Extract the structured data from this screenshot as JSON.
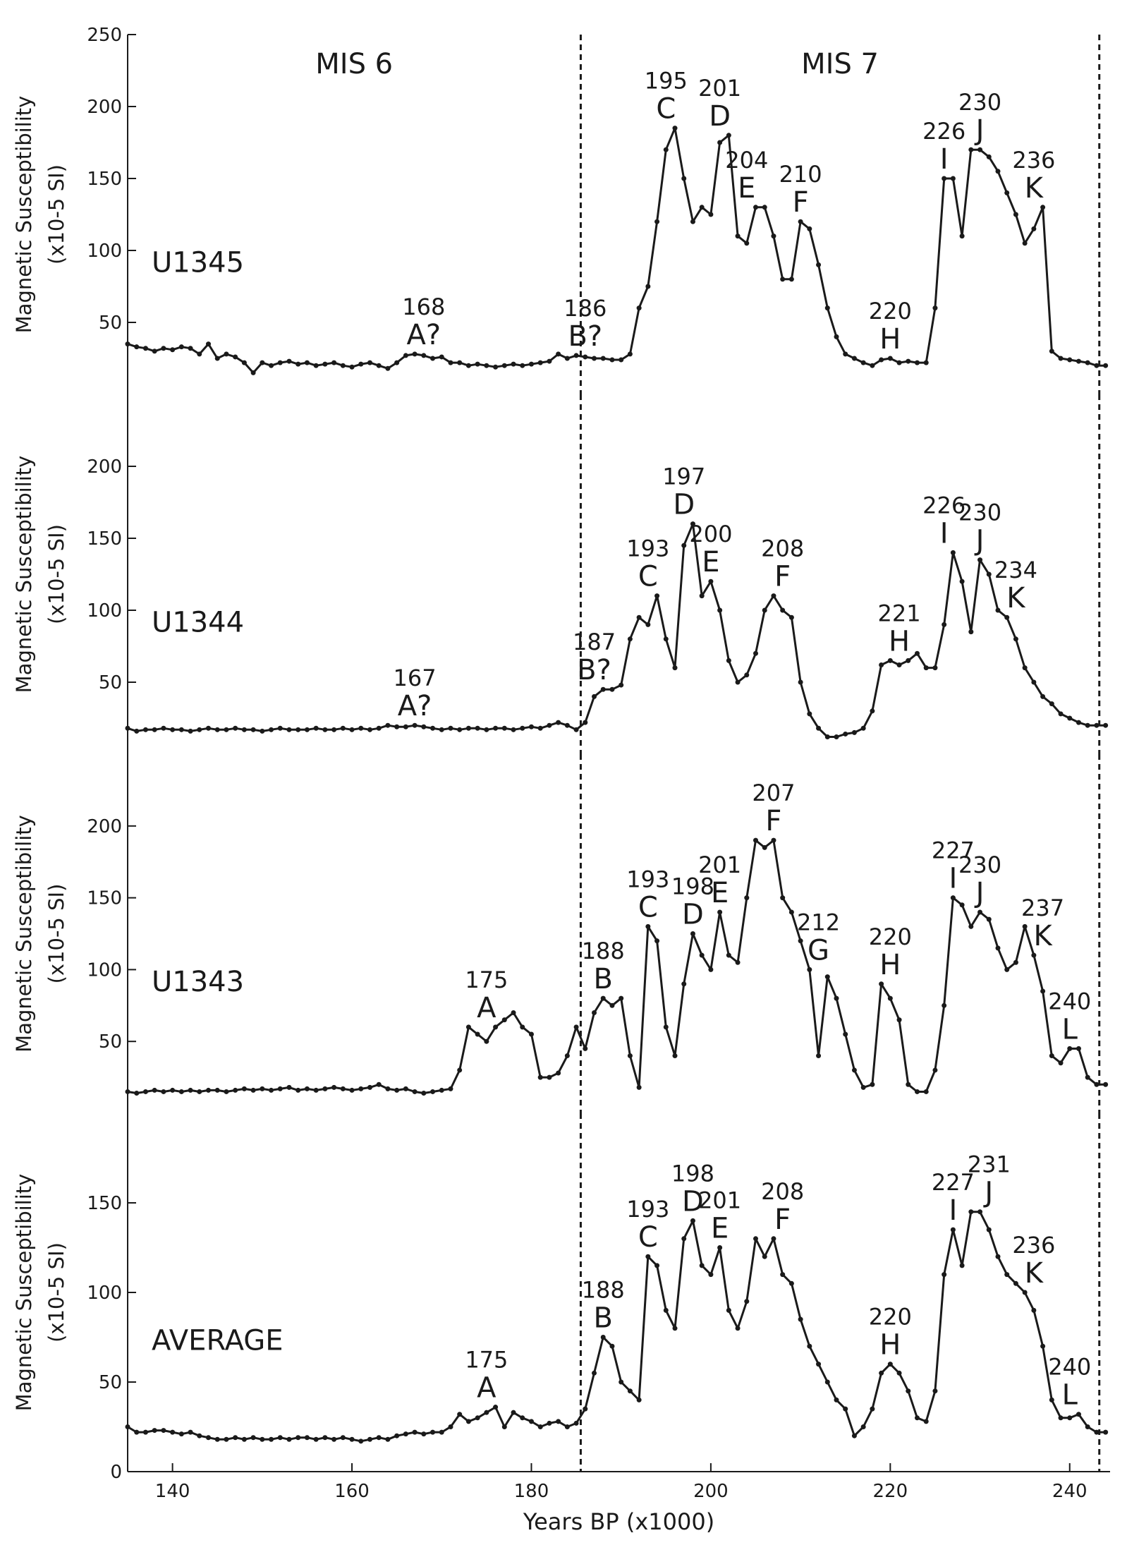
{
  "chart_data": [
    {
      "type": "line",
      "panel_label": "U1345",
      "y_label": [
        "Magnetic Susceptibility",
        "(x10-5 SI)"
      ],
      "periods": [
        "MIS 6",
        "MIS 7"
      ],
      "xlim": [
        135,
        244.5
      ],
      "ylim": [
        0,
        250
      ],
      "yticks": [
        50,
        100,
        150,
        200,
        250
      ],
      "vlines": [
        185.5,
        243.3
      ],
      "x": [
        135,
        136,
        137,
        138,
        139,
        140,
        141,
        142,
        143,
        144,
        145,
        146,
        147,
        148,
        149,
        150,
        151,
        152,
        153,
        154,
        155,
        156,
        157,
        158,
        159,
        160,
        161,
        162,
        163,
        164,
        165,
        166,
        167,
        168,
        169,
        170,
        171,
        172,
        173,
        174,
        175,
        176,
        177,
        178,
        179,
        180,
        181,
        182,
        183,
        184,
        185,
        186,
        187,
        188,
        189,
        190,
        191,
        192,
        193,
        194,
        195,
        196,
        197,
        198,
        199,
        200,
        201,
        202,
        203,
        204,
        205,
        206,
        207,
        208,
        209,
        210,
        211,
        212,
        213,
        214,
        215,
        216,
        217,
        218,
        219,
        220,
        221,
        222,
        223,
        224,
        225,
        226,
        227,
        228,
        229,
        230,
        231,
        232,
        233,
        234,
        235,
        236,
        237,
        238,
        239,
        240,
        241,
        242,
        243,
        244
      ],
      "series": [
        {
          "color": "#1a1a1a",
          "values": [
            35,
            33,
            32,
            30,
            32,
            31,
            33,
            32,
            28,
            35,
            25,
            28,
            26,
            22,
            15,
            22,
            20,
            22,
            23,
            21,
            22,
            20,
            21,
            22,
            20,
            19,
            21,
            22,
            20,
            18,
            22,
            27,
            28,
            27,
            25,
            26,
            22,
            22,
            20,
            21,
            20,
            19,
            20,
            21,
            20,
            21,
            22,
            23,
            28,
            25,
            27,
            26,
            25,
            25,
            24,
            24,
            28,
            60,
            75,
            120,
            170,
            185,
            150,
            120,
            130,
            125,
            175,
            180,
            110,
            105,
            130,
            130,
            110,
            80,
            80,
            120,
            115,
            90,
            60,
            40,
            28,
            25,
            22,
            20,
            24,
            25,
            22,
            23,
            22,
            22,
            60,
            150,
            150,
            110,
            170,
            170,
            165,
            155,
            140,
            125,
            105,
            115,
            130,
            30,
            25,
            24,
            23,
            22,
            20,
            20
          ]
        }
      ],
      "annotations": [
        {
          "year": 168,
          "letter": "A?"
        },
        {
          "year": 186,
          "letter": "B?"
        },
        {
          "year": 195,
          "letter": "C"
        },
        {
          "year": 201,
          "letter": "D"
        },
        {
          "year": 204,
          "letter": "E"
        },
        {
          "year": 210,
          "letter": "F"
        },
        {
          "year": 220,
          "letter": "H"
        },
        {
          "year": 226,
          "letter": "I"
        },
        {
          "year": 230,
          "letter": "J"
        },
        {
          "year": 236,
          "letter": "K"
        }
      ]
    },
    {
      "type": "line",
      "panel_label": "U1344",
      "y_label": [
        "Magnetic Susceptibility",
        "(x10-5 SI)"
      ],
      "xlim": [
        135,
        244.5
      ],
      "ylim": [
        0,
        250
      ],
      "yticks": [
        50,
        100,
        150,
        200
      ],
      "vlines": [
        185.5,
        243.3
      ],
      "x": [
        135,
        136,
        137,
        138,
        139,
        140,
        141,
        142,
        143,
        144,
        145,
        146,
        147,
        148,
        149,
        150,
        151,
        152,
        153,
        154,
        155,
        156,
        157,
        158,
        159,
        160,
        161,
        162,
        163,
        164,
        165,
        166,
        167,
        168,
        169,
        170,
        171,
        172,
        173,
        174,
        175,
        176,
        177,
        178,
        179,
        180,
        181,
        182,
        183,
        184,
        185,
        186,
        187,
        188,
        189,
        190,
        191,
        192,
        193,
        194,
        195,
        196,
        197,
        198,
        199,
        200,
        201,
        202,
        203,
        204,
        205,
        206,
        207,
        208,
        209,
        210,
        211,
        212,
        213,
        214,
        215,
        216,
        217,
        218,
        219,
        220,
        221,
        222,
        223,
        224,
        225,
        226,
        227,
        228,
        229,
        230,
        231,
        232,
        233,
        234,
        235,
        236,
        237,
        238,
        239,
        240,
        241,
        242,
        243,
        244
      ],
      "series": [
        {
          "color": "#1a1a1a",
          "values": [
            18,
            16,
            17,
            17,
            18,
            17,
            17,
            16,
            17,
            18,
            17,
            17,
            18,
            17,
            17,
            16,
            17,
            18,
            17,
            17,
            17,
            18,
            17,
            17,
            18,
            17,
            18,
            17,
            18,
            20,
            19,
            19,
            20,
            19,
            18,
            17,
            18,
            17,
            18,
            18,
            17,
            18,
            18,
            17,
            18,
            19,
            18,
            20,
            22,
            20,
            17,
            22,
            40,
            45,
            45,
            48,
            80,
            95,
            90,
            110,
            80,
            60,
            145,
            160,
            110,
            120,
            100,
            65,
            50,
            55,
            70,
            100,
            110,
            100,
            95,
            50,
            28,
            18,
            12,
            12,
            14,
            15,
            18,
            30,
            62,
            65,
            62,
            65,
            70,
            60,
            60,
            90,
            140,
            120,
            85,
            135,
            125,
            100,
            95,
            80,
            60,
            50,
            40,
            35,
            28,
            25,
            22,
            20,
            20,
            20
          ]
        }
      ],
      "annotations": [
        {
          "year": 167,
          "letter": "A?"
        },
        {
          "year": 187,
          "letter": "B?"
        },
        {
          "year": 193,
          "letter": "C"
        },
        {
          "year": 197,
          "letter": "D"
        },
        {
          "year": 200,
          "letter": "E"
        },
        {
          "year": 208,
          "letter": "F"
        },
        {
          "year": 221,
          "letter": "H"
        },
        {
          "year": 226,
          "letter": "I"
        },
        {
          "year": 230,
          "letter": "J"
        },
        {
          "year": 234,
          "letter": "K"
        }
      ]
    },
    {
      "type": "line",
      "panel_label": "U1343",
      "y_label": [
        "Magnetic Susceptibility",
        "(x10-5 SI)"
      ],
      "xlim": [
        135,
        244.5
      ],
      "ylim": [
        0,
        250
      ],
      "yticks": [
        50,
        100,
        150,
        200
      ],
      "vlines": [
        185.5,
        243.3
      ],
      "x": [
        135,
        136,
        137,
        138,
        139,
        140,
        141,
        142,
        143,
        144,
        145,
        146,
        147,
        148,
        149,
        150,
        151,
        152,
        153,
        154,
        155,
        156,
        157,
        158,
        159,
        160,
        161,
        162,
        163,
        164,
        165,
        166,
        167,
        168,
        169,
        170,
        171,
        172,
        173,
        174,
        175,
        176,
        177,
        178,
        179,
        180,
        181,
        182,
        183,
        184,
        185,
        186,
        187,
        188,
        189,
        190,
        191,
        192,
        193,
        194,
        195,
        196,
        197,
        198,
        199,
        200,
        201,
        202,
        203,
        204,
        205,
        206,
        207,
        208,
        209,
        210,
        211,
        212,
        213,
        214,
        215,
        216,
        217,
        218,
        219,
        220,
        221,
        222,
        223,
        224,
        225,
        226,
        227,
        228,
        229,
        230,
        231,
        232,
        233,
        234,
        235,
        236,
        237,
        238,
        239,
        240,
        241,
        242,
        243,
        244
      ],
      "series": [
        {
          "color": "#1a1a1a",
          "values": [
            15,
            14,
            15,
            16,
            15,
            16,
            15,
            16,
            15,
            16,
            16,
            15,
            16,
            17,
            16,
            17,
            16,
            17,
            18,
            16,
            17,
            16,
            17,
            18,
            17,
            16,
            17,
            18,
            20,
            17,
            16,
            17,
            15,
            14,
            15,
            16,
            17,
            30,
            60,
            55,
            50,
            60,
            65,
            70,
            60,
            55,
            25,
            25,
            28,
            40,
            60,
            45,
            70,
            80,
            75,
            80,
            40,
            18,
            130,
            120,
            60,
            40,
            90,
            125,
            110,
            100,
            140,
            110,
            105,
            150,
            190,
            185,
            190,
            150,
            140,
            120,
            100,
            40,
            95,
            80,
            55,
            30,
            18,
            20,
            90,
            80,
            65,
            20,
            15,
            15,
            30,
            75,
            150,
            145,
            130,
            140,
            135,
            115,
            100,
            105,
            130,
            110,
            85,
            40,
            35,
            45,
            45,
            25,
            20,
            20
          ]
        }
      ],
      "annotations": [
        {
          "year": 175,
          "letter": "A"
        },
        {
          "year": 188,
          "letter": "B"
        },
        {
          "year": 193,
          "letter": "C"
        },
        {
          "year": 198,
          "letter": "D"
        },
        {
          "year": 201,
          "letter": "E"
        },
        {
          "year": 207,
          "letter": "F"
        },
        {
          "year": 212,
          "letter": "G"
        },
        {
          "year": 220,
          "letter": "H"
        },
        {
          "year": 227,
          "letter": "I"
        },
        {
          "year": 230,
          "letter": "J"
        },
        {
          "year": 237,
          "letter": "K"
        },
        {
          "year": 240,
          "letter": "L"
        }
      ]
    },
    {
      "type": "line",
      "panel_label": "AVERAGE",
      "y_label": [
        "Magnetic Susceptibility",
        "(x10-5 SI)"
      ],
      "x_label": "Years BP (x1000)",
      "xlim": [
        135,
        244.5
      ],
      "ylim": [
        0,
        200
      ],
      "yticks": [
        0,
        50,
        100,
        150
      ],
      "xticks": [
        140,
        160,
        180,
        200,
        220,
        240
      ],
      "vlines": [
        185.5,
        243.3
      ],
      "x": [
        135,
        136,
        137,
        138,
        139,
        140,
        141,
        142,
        143,
        144,
        145,
        146,
        147,
        148,
        149,
        150,
        151,
        152,
        153,
        154,
        155,
        156,
        157,
        158,
        159,
        160,
        161,
        162,
        163,
        164,
        165,
        166,
        167,
        168,
        169,
        170,
        171,
        172,
        173,
        174,
        175,
        176,
        177,
        178,
        179,
        180,
        181,
        182,
        183,
        184,
        185,
        186,
        187,
        188,
        189,
        190,
        191,
        192,
        193,
        194,
        195,
        196,
        197,
        198,
        199,
        200,
        201,
        202,
        203,
        204,
        205,
        206,
        207,
        208,
        209,
        210,
        211,
        212,
        213,
        214,
        215,
        216,
        217,
        218,
        219,
        220,
        221,
        222,
        223,
        224,
        225,
        226,
        227,
        228,
        229,
        230,
        231,
        232,
        233,
        234,
        235,
        236,
        237,
        238,
        239,
        240,
        241,
        242,
        243,
        244
      ],
      "series": [
        {
          "color": "#1a1a1a",
          "values": [
            25,
            22,
            22,
            23,
            23,
            22,
            21,
            22,
            20,
            19,
            18,
            18,
            19,
            18,
            19,
            18,
            18,
            19,
            18,
            19,
            19,
            18,
            19,
            18,
            19,
            18,
            17,
            18,
            19,
            18,
            20,
            21,
            22,
            21,
            22,
            22,
            25,
            32,
            28,
            30,
            33,
            36,
            25,
            33,
            30,
            28,
            25,
            27,
            28,
            25,
            27,
            35,
            55,
            75,
            70,
            50,
            45,
            40,
            120,
            115,
            90,
            80,
            130,
            140,
            115,
            110,
            125,
            90,
            80,
            95,
            130,
            120,
            130,
            110,
            105,
            85,
            70,
            60,
            50,
            40,
            35,
            20,
            25,
            35,
            55,
            60,
            55,
            45,
            30,
            28,
            45,
            110,
            135,
            115,
            145,
            145,
            135,
            120,
            110,
            105,
            100,
            90,
            70,
            40,
            30,
            30,
            32,
            25,
            22,
            22
          ]
        }
      ],
      "annotations": [
        {
          "year": 175,
          "letter": "A"
        },
        {
          "year": 188,
          "letter": "B"
        },
        {
          "year": 193,
          "letter": "C"
        },
        {
          "year": 198,
          "letter": "D"
        },
        {
          "year": 201,
          "letter": "E"
        },
        {
          "year": 208,
          "letter": "F"
        },
        {
          "year": 220,
          "letter": "H"
        },
        {
          "year": 227,
          "letter": "I"
        },
        {
          "year": 231,
          "letter": "J"
        },
        {
          "year": 236,
          "letter": "K"
        },
        {
          "year": 240,
          "letter": "L"
        }
      ]
    }
  ]
}
